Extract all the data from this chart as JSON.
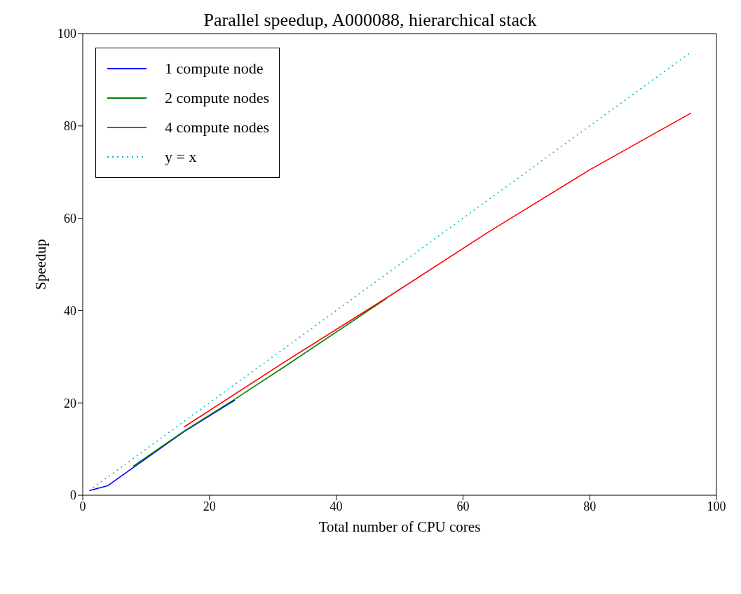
{
  "chart_data": {
    "type": "line",
    "title": "Parallel speedup, A000088, hierarchical stack",
    "xlabel": "Total number of CPU cores",
    "ylabel": "Speedup",
    "xlim": [
      0,
      100
    ],
    "xticks": [
      0,
      20,
      40,
      60,
      80,
      100
    ],
    "ylim": [
      0,
      100
    ],
    "yticks": [
      0,
      20,
      40,
      60,
      80,
      100
    ],
    "legend": "top left",
    "marker": "none",
    "series": [
      {
        "name": "1 compute node",
        "color": "#0000ff",
        "x": [
          1,
          4,
          8,
          16,
          24
        ],
        "values": [
          1,
          2.1,
          6,
          13.8,
          20.6
        ]
      },
      {
        "name": "2 compute nodes",
        "color": "#008000",
        "x": [
          8,
          16,
          24,
          32,
          48
        ],
        "values": [
          6.3,
          13.9,
          20.8,
          28,
          42.7
        ]
      },
      {
        "name": "4 compute nodes",
        "color": "#ff0000",
        "x": [
          16,
          32,
          48,
          64,
          80,
          96
        ],
        "values": [
          14.8,
          29,
          42.8,
          57,
          70.5,
          82.8
        ]
      },
      {
        "name": "y = x",
        "color": "#00bfbf",
        "line_style": "dotted",
        "x": [
          1,
          96
        ],
        "values": [
          1,
          96
        ]
      }
    ]
  }
}
